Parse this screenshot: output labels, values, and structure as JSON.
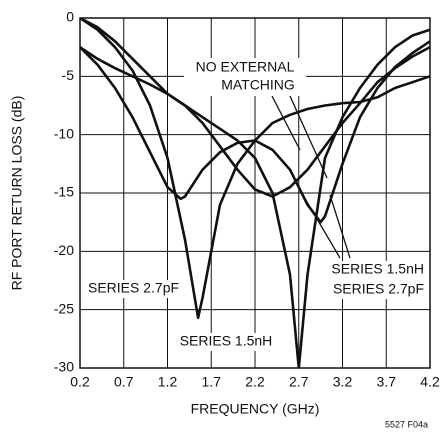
{
  "chart_data": {
    "type": "line",
    "xlabel": "FREQUENCY (GHz)",
    "ylabel": "RF PORT RETURN LOSS (dB)",
    "xlim": [
      0.2,
      4.2
    ],
    "ylim": [
      -30,
      0
    ],
    "xticks": [
      0.2,
      0.7,
      1.2,
      1.7,
      2.2,
      2.7,
      3.2,
      3.7,
      4.2
    ],
    "yticks": [
      0,
      -5,
      -10,
      -15,
      -20,
      -25,
      -30
    ],
    "grid": true,
    "series": [
      {
        "color": "#111111",
        "x": [
          0.2,
          0.4,
          0.6,
          0.8,
          1.0,
          1.2,
          1.4,
          1.55,
          1.6,
          1.8,
          2.0,
          2.2,
          2.4,
          2.6,
          2.8,
          3.0,
          3.2,
          3.4,
          3.6,
          3.8,
          4.0,
          4.2
        ],
        "values": [
          0,
          -1,
          -2.5,
          -4.5,
          -7.5,
          -12,
          -19,
          -25.7,
          -24,
          -16,
          -12.5,
          -10.5,
          -9,
          -8.3,
          -7.8,
          -7.5,
          -7.3,
          -7.2,
          -6.8,
          -6,
          -5.5,
          -5
        ]
      },
      {
        "color": "#111111",
        "x": [
          0.2,
          0.4,
          0.6,
          0.8,
          1.0,
          1.2,
          1.4,
          1.6,
          1.8,
          2.0,
          2.2,
          2.4,
          2.6,
          2.7,
          2.8,
          3.0,
          3.2,
          3.4,
          3.6,
          3.8,
          4.0,
          4.2
        ],
        "values": [
          0,
          -0.8,
          -2,
          -3.5,
          -5,
          -6.5,
          -7.5,
          -8.5,
          -9.5,
          -10.5,
          -12,
          -15,
          -22,
          -30,
          -22,
          -12,
          -8.5,
          -6,
          -4,
          -2.5,
          -1.5,
          -1
        ]
      },
      {
        "color": "#111111",
        "x": [
          0.2,
          0.4,
          0.6,
          0.8,
          1.0,
          1.2,
          1.35,
          1.4,
          1.6,
          1.8,
          2.0,
          2.2,
          2.4,
          2.6,
          2.8,
          2.95,
          3.0,
          3.2,
          3.4,
          3.6,
          3.8,
          4.0,
          4.2
        ],
        "values": [
          -2.5,
          -4,
          -6,
          -8.5,
          -11.5,
          -14.5,
          -15.5,
          -15.3,
          -13,
          -11.5,
          -10.7,
          -10.5,
          -11.3,
          -13,
          -16,
          -17.5,
          -17,
          -12.5,
          -8.5,
          -6,
          -4.2,
          -3,
          -2
        ]
      },
      {
        "color": "#111111",
        "x": [
          0.2,
          0.4,
          0.6,
          0.8,
          1.0,
          1.2,
          1.4,
          1.6,
          1.8,
          2.0,
          2.2,
          2.4,
          2.6,
          2.8,
          3.0,
          3.2,
          3.4,
          3.6,
          3.8,
          4.0,
          4.2
        ],
        "values": [
          -2.5,
          -3.5,
          -4.3,
          -5,
          -5.7,
          -6.5,
          -7.5,
          -9,
          -11,
          -13,
          -14.7,
          -15.3,
          -14.5,
          -13,
          -11,
          -9,
          -7.3,
          -5.5,
          -4.3,
          -3.3,
          -2.5
        ]
      }
    ],
    "annotations": [
      "NO EXTERNAL",
      "MATCHING",
      "SERIES 2.7pF",
      "SERIES 1.5nH",
      "SERIES 1.5nH",
      "SERIES 2.7pF"
    ],
    "footnote": "5527 F04a"
  }
}
